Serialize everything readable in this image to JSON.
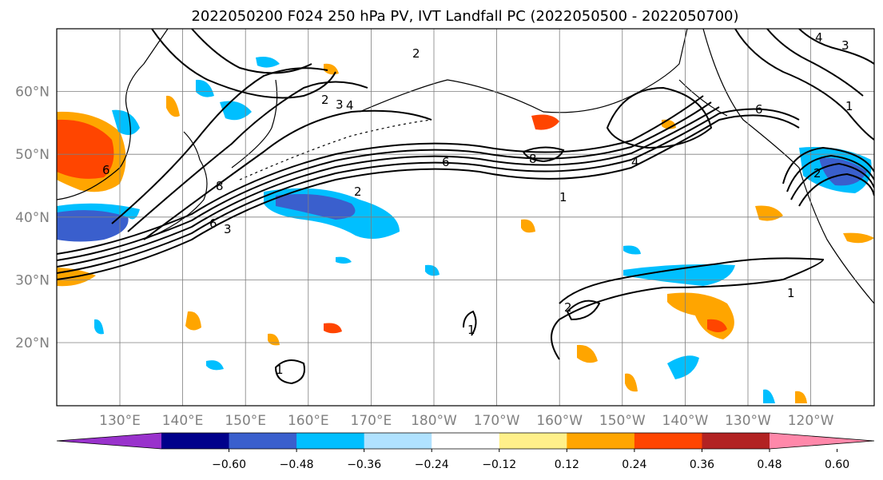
{
  "title": "2022050200 F024 250 hPa PV, IVT Landfall PC (2022050500 - 2022050700)",
  "map": {
    "lon_labels": [
      "130°E",
      "140°E",
      "150°E",
      "160°E",
      "170°E",
      "180°W",
      "170°W",
      "160°W",
      "150°W",
      "140°W",
      "130°W",
      "120°W"
    ],
    "lat_labels": [
      "20°N",
      "30°N",
      "40°N",
      "50°N",
      "60°N"
    ],
    "contour_labels": [
      "2",
      "3",
      "4",
      "6",
      "8",
      "1",
      "2",
      "6",
      "8",
      "4",
      "1",
      "6",
      "2",
      "2",
      "1",
      "1",
      "3",
      "6",
      "2",
      "3",
      "4",
      "1"
    ]
  },
  "colorbar": {
    "tick_labels": [
      "−0.60",
      "−0.48",
      "−0.36",
      "−0.24",
      "−0.12",
      "0.12",
      "0.24",
      "0.36",
      "0.48",
      "0.60"
    ],
    "colors": [
      "#9932cc",
      "#00008b",
      "#3a5fcd",
      "#00bfff",
      "#b0e2ff",
      "#ffffff",
      "#fff08a",
      "#ffa500",
      "#ff4500",
      "#b22222",
      "#ff88aa"
    ]
  }
}
